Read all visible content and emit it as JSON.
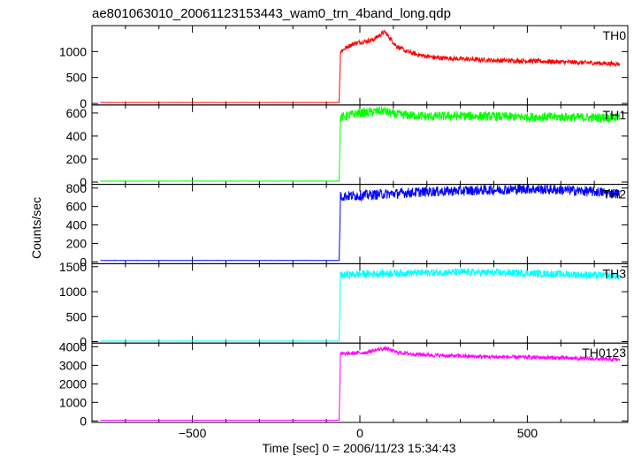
{
  "chart_data": {
    "type": "line",
    "title": "ae801063010_20061123153443_wam0_trn_4band_long.qdp",
    "xlabel": "Time [sec] 0 = 2006/11/23 15:34:43",
    "ylabel": "Counts/sec",
    "xlim": [
      -800,
      800
    ],
    "x_ticks": [
      -500,
      0,
      500
    ],
    "x_tick_labels": [
      "−500",
      "0",
      "500"
    ],
    "x_data_range": [
      -775,
      775
    ],
    "trigger_time": -60,
    "grid": false,
    "panels": [
      {
        "name": "TH0",
        "color": "#ff0000",
        "ylim": [
          -30,
          1500
        ],
        "y_ticks": [
          0,
          500,
          1000
        ],
        "x": [
          -775,
          -600,
          -400,
          -200,
          -62,
          -58,
          -40,
          -20,
          0,
          20,
          40,
          60,
          75,
          90,
          110,
          140,
          180,
          230,
          300,
          400,
          500,
          600,
          700,
          775
        ],
        "y": [
          18,
          18,
          18,
          18,
          18,
          1000,
          1080,
          1150,
          1180,
          1200,
          1230,
          1320,
          1380,
          1250,
          1100,
          1000,
          930,
          880,
          860,
          830,
          820,
          800,
          780,
          760
        ]
      },
      {
        "name": "TH1",
        "color": "#00ff00",
        "ylim": [
          -20,
          670
        ],
        "y_ticks": [
          0,
          200,
          400,
          600
        ],
        "x": [
          -775,
          -400,
          -62,
          -58,
          -20,
          0,
          40,
          70,
          100,
          200,
          300,
          400,
          500,
          600,
          700,
          775
        ],
        "y": [
          8,
          8,
          8,
          560,
          590,
          600,
          610,
          620,
          590,
          570,
          575,
          570,
          565,
          565,
          560,
          560
        ],
        "noise": 40
      },
      {
        "name": "TH2",
        "color": "#0000ff",
        "ylim": [
          -20,
          840
        ],
        "y_ticks": [
          0,
          200,
          400,
          600,
          800
        ],
        "x": [
          -775,
          -400,
          -62,
          -58,
          0,
          100,
          200,
          300,
          400,
          500,
          600,
          700,
          775
        ],
        "y": [
          15,
          15,
          15,
          710,
          720,
          740,
          760,
          770,
          780,
          790,
          780,
          760,
          740
        ],
        "noise": 55
      },
      {
        "name": "TH3",
        "color": "#00ffff",
        "ylim": [
          -30,
          1560
        ],
        "y_ticks": [
          0,
          500,
          1000,
          1500
        ],
        "x": [
          -775,
          -400,
          -62,
          -58,
          0,
          100,
          200,
          300,
          400,
          500,
          600,
          700,
          775
        ],
        "y": [
          10,
          10,
          10,
          1330,
          1350,
          1370,
          1380,
          1390,
          1380,
          1370,
          1350,
          1330,
          1310
        ],
        "noise": 75
      },
      {
        "name": "TH0123",
        "color": "#ff00ff",
        "ylim": [
          -80,
          4200
        ],
        "y_ticks": [
          0,
          1000,
          2000,
          3000,
          4000
        ],
        "x": [
          -775,
          -400,
          -62,
          -58,
          -20,
          20,
          60,
          80,
          110,
          160,
          250,
          400,
          550,
          700,
          775
        ],
        "y": [
          40,
          40,
          40,
          3600,
          3650,
          3700,
          3880,
          3900,
          3700,
          3600,
          3520,
          3450,
          3420,
          3350,
          3300
        ],
        "noise": 110
      }
    ]
  }
}
